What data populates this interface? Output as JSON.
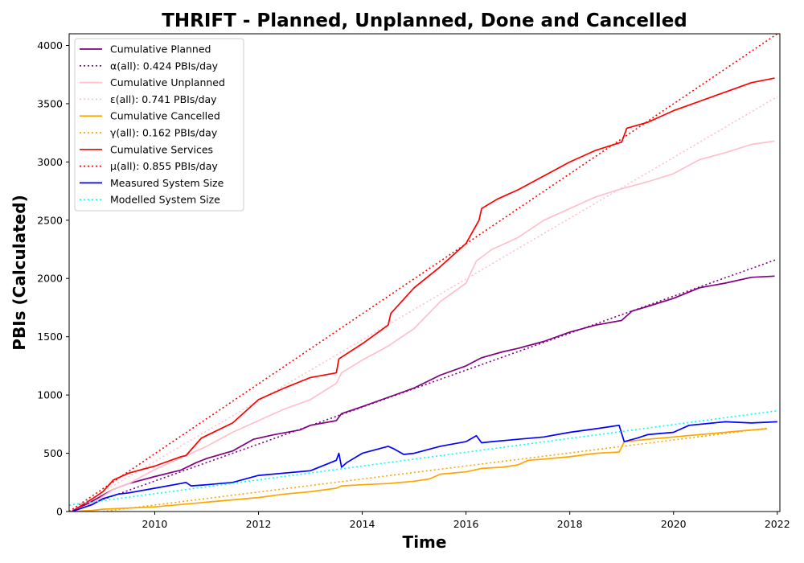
{
  "chart_data": {
    "type": "line",
    "title": "THRIFT - Planned, Unplanned, Done  and Cancelled",
    "xlabel": "Time",
    "ylabel": "PBIs (Calculated)",
    "xlim": [
      2008.35,
      2022.05
    ],
    "ylim": [
      0,
      4100
    ],
    "xticks": [
      2010,
      2012,
      2014,
      2016,
      2018,
      2020,
      2022
    ],
    "yticks": [
      0,
      500,
      1000,
      1500,
      2000,
      2500,
      3000,
      3500,
      4000
    ],
    "grid": false,
    "legend_position": "top-left",
    "series": [
      {
        "name": "Cumulative Planned",
        "style": "solid",
        "color": "#800080",
        "points": [
          [
            2008.4,
            0
          ],
          [
            2008.8,
            90
          ],
          [
            2009.2,
            190
          ],
          [
            2009.5,
            240
          ],
          [
            2010.0,
            300
          ],
          [
            2010.5,
            355
          ],
          [
            2010.8,
            420
          ],
          [
            2011.0,
            455
          ],
          [
            2011.5,
            520
          ],
          [
            2011.9,
            620
          ],
          [
            2012.3,
            660
          ],
          [
            2012.8,
            700
          ],
          [
            2013.0,
            740
          ],
          [
            2013.5,
            780
          ],
          [
            2013.6,
            840
          ],
          [
            2014.0,
            900
          ],
          [
            2014.5,
            980
          ],
          [
            2015.0,
            1060
          ],
          [
            2015.5,
            1170
          ],
          [
            2016.0,
            1250
          ],
          [
            2016.3,
            1320
          ],
          [
            2016.7,
            1370
          ],
          [
            2017.0,
            1400
          ],
          [
            2017.5,
            1460
          ],
          [
            2018.0,
            1540
          ],
          [
            2018.5,
            1600
          ],
          [
            2019.0,
            1640
          ],
          [
            2019.2,
            1720
          ],
          [
            2019.5,
            1760
          ],
          [
            2020.0,
            1830
          ],
          [
            2020.5,
            1920
          ],
          [
            2021.0,
            1960
          ],
          [
            2021.5,
            2010
          ],
          [
            2021.95,
            2020
          ]
        ]
      },
      {
        "name": "α(all): 0.424 PBIs/day",
        "style": "dotted",
        "color": "#800080",
        "points": [
          [
            2008.35,
            0
          ],
          [
            2022.0,
            2165
          ]
        ]
      },
      {
        "name": "Cumulative Unplanned",
        "style": "solid",
        "color": "#ffc0cb",
        "points": [
          [
            2008.4,
            0
          ],
          [
            2008.8,
            70
          ],
          [
            2009.2,
            190
          ],
          [
            2009.5,
            240
          ],
          [
            2010.0,
            360
          ],
          [
            2010.5,
            460
          ],
          [
            2011.0,
            560
          ],
          [
            2011.5,
            680
          ],
          [
            2012.0,
            780
          ],
          [
            2012.5,
            880
          ],
          [
            2013.0,
            960
          ],
          [
            2013.5,
            1100
          ],
          [
            2013.6,
            1190
          ],
          [
            2014.0,
            1300
          ],
          [
            2014.5,
            1420
          ],
          [
            2015.0,
            1570
          ],
          [
            2015.5,
            1800
          ],
          [
            2016.0,
            1960
          ],
          [
            2016.2,
            2150
          ],
          [
            2016.5,
            2250
          ],
          [
            2017.0,
            2350
          ],
          [
            2017.5,
            2500
          ],
          [
            2018.0,
            2600
          ],
          [
            2018.5,
            2700
          ],
          [
            2019.0,
            2770
          ],
          [
            2019.5,
            2830
          ],
          [
            2020.0,
            2900
          ],
          [
            2020.5,
            3020
          ],
          [
            2021.0,
            3080
          ],
          [
            2021.5,
            3150
          ],
          [
            2021.95,
            3180
          ]
        ]
      },
      {
        "name": "ε(all): 0.741 PBIs/day",
        "style": "dotted",
        "color": "#ffc0cb",
        "points": [
          [
            2008.35,
            0
          ],
          [
            2022.0,
            3560
          ]
        ]
      },
      {
        "name": "Cumulative Cancelled",
        "style": "solid",
        "color": "#ffa500",
        "points": [
          [
            2008.4,
            0
          ],
          [
            2008.8,
            10
          ],
          [
            2009.0,
            20
          ],
          [
            2009.5,
            30
          ],
          [
            2010.0,
            40
          ],
          [
            2010.5,
            60
          ],
          [
            2011.0,
            80
          ],
          [
            2011.5,
            100
          ],
          [
            2012.0,
            120
          ],
          [
            2012.5,
            150
          ],
          [
            2013.0,
            170
          ],
          [
            2013.5,
            200
          ],
          [
            2013.6,
            220
          ],
          [
            2014.0,
            230
          ],
          [
            2014.5,
            240
          ],
          [
            2015.0,
            260
          ],
          [
            2015.3,
            280
          ],
          [
            2015.5,
            320
          ],
          [
            2016.0,
            340
          ],
          [
            2016.3,
            370
          ],
          [
            2016.7,
            380
          ],
          [
            2017.0,
            400
          ],
          [
            2017.2,
            440
          ],
          [
            2017.5,
            450
          ],
          [
            2018.0,
            470
          ],
          [
            2018.5,
            500
          ],
          [
            2018.95,
            510
          ],
          [
            2019.05,
            600
          ],
          [
            2019.5,
            620
          ],
          [
            2020.0,
            640
          ],
          [
            2020.5,
            660
          ],
          [
            2021.0,
            680
          ],
          [
            2021.5,
            700
          ],
          [
            2021.8,
            710
          ]
        ]
      },
      {
        "name": "γ(all): 0.162 PBIs/day",
        "style": "dotted",
        "color": "#ffa500",
        "points": [
          [
            2009.0,
            0
          ],
          [
            2021.8,
            715
          ]
        ]
      },
      {
        "name": "Cumulative Services",
        "style": "solid",
        "color": "#ff0000",
        "points": [
          [
            2008.4,
            0
          ],
          [
            2008.8,
            110
          ],
          [
            2009.0,
            170
          ],
          [
            2009.2,
            270
          ],
          [
            2009.5,
            330
          ],
          [
            2010.0,
            390
          ],
          [
            2010.5,
            470
          ],
          [
            2010.6,
            480
          ],
          [
            2010.9,
            630
          ],
          [
            2011.5,
            760
          ],
          [
            2012.0,
            960
          ],
          [
            2012.5,
            1060
          ],
          [
            2013.0,
            1150
          ],
          [
            2013.5,
            1190
          ],
          [
            2013.55,
            1310
          ],
          [
            2014.0,
            1440
          ],
          [
            2014.5,
            1600
          ],
          [
            2014.55,
            1700
          ],
          [
            2015.0,
            1920
          ],
          [
            2015.5,
            2100
          ],
          [
            2016.0,
            2300
          ],
          [
            2016.25,
            2500
          ],
          [
            2016.3,
            2600
          ],
          [
            2016.6,
            2680
          ],
          [
            2017.0,
            2760
          ],
          [
            2017.5,
            2880
          ],
          [
            2018.0,
            3000
          ],
          [
            2018.5,
            3100
          ],
          [
            2019.0,
            3170
          ],
          [
            2019.1,
            3290
          ],
          [
            2019.5,
            3340
          ],
          [
            2020.0,
            3440
          ],
          [
            2020.5,
            3520
          ],
          [
            2021.0,
            3600
          ],
          [
            2021.5,
            3680
          ],
          [
            2021.95,
            3720
          ]
        ]
      },
      {
        "name": "μ(all): 0.855 PBIs/day",
        "style": "dotted",
        "color": "#ff0000",
        "points": [
          [
            2008.35,
            0
          ],
          [
            2022.0,
            4100
          ]
        ]
      },
      {
        "name": "Measured System Size",
        "style": "solid",
        "color": "#0000ff",
        "points": [
          [
            2008.4,
            0
          ],
          [
            2008.8,
            60
          ],
          [
            2009.0,
            110
          ],
          [
            2009.3,
            150
          ],
          [
            2009.5,
            160
          ],
          [
            2010.0,
            200
          ],
          [
            2010.5,
            240
          ],
          [
            2010.6,
            250
          ],
          [
            2010.7,
            220
          ],
          [
            2011.0,
            230
          ],
          [
            2011.5,
            250
          ],
          [
            2012.0,
            310
          ],
          [
            2012.5,
            330
          ],
          [
            2013.0,
            350
          ],
          [
            2013.5,
            440
          ],
          [
            2013.55,
            500
          ],
          [
            2013.6,
            380
          ],
          [
            2013.7,
            420
          ],
          [
            2014.0,
            500
          ],
          [
            2014.5,
            560
          ],
          [
            2014.6,
            540
          ],
          [
            2014.8,
            490
          ],
          [
            2015.0,
            500
          ],
          [
            2015.5,
            560
          ],
          [
            2016.0,
            600
          ],
          [
            2016.2,
            650
          ],
          [
            2016.3,
            590
          ],
          [
            2016.5,
            600
          ],
          [
            2017.0,
            620
          ],
          [
            2017.5,
            640
          ],
          [
            2018.0,
            680
          ],
          [
            2018.5,
            710
          ],
          [
            2018.95,
            740
          ],
          [
            2019.05,
            600
          ],
          [
            2019.3,
            630
          ],
          [
            2019.5,
            660
          ],
          [
            2020.0,
            680
          ],
          [
            2020.3,
            740
          ],
          [
            2021.0,
            770
          ],
          [
            2021.5,
            760
          ],
          [
            2022.0,
            770
          ]
        ]
      },
      {
        "name": "Modelled System Size",
        "style": "dotted",
        "color": "#00ffff",
        "points": [
          [
            2008.35,
            55
          ],
          [
            2022.0,
            865
          ]
        ]
      }
    ]
  }
}
